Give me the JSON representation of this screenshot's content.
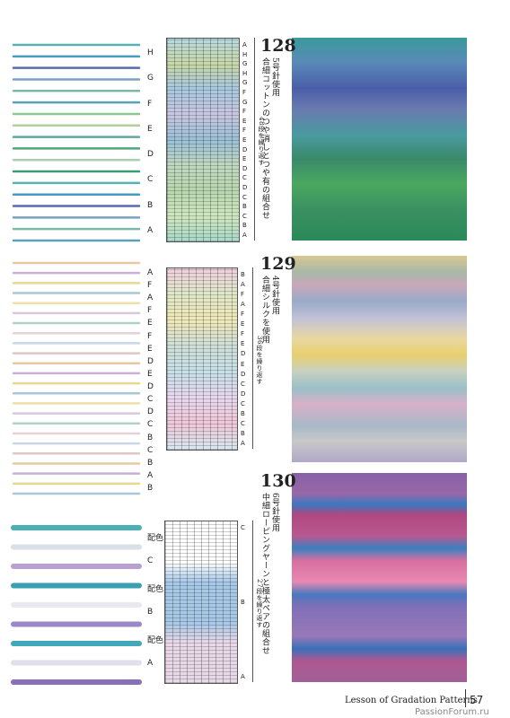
{
  "sections": [
    {
      "number": "128",
      "needle": "5号針使用",
      "yarn": "合細コットンのつや消しとつや有の組合せ",
      "repeat": "48段を繰り返す",
      "strand_labels": [
        "H",
        "G",
        "F",
        "E",
        "D",
        "C",
        "B",
        "A"
      ],
      "chart_labels": [
        "A",
        "H",
        "G",
        "H",
        "G",
        "F",
        "G",
        "F",
        "E",
        "F",
        "E",
        "D",
        "E",
        "D",
        "C",
        "D",
        "C",
        "B",
        "C",
        "B",
        "A"
      ]
    },
    {
      "number": "129",
      "needle": "4号針使用",
      "yarn": "合細シルクを使用",
      "repeat": "36段を繰り返す",
      "strand_labels": [
        "A",
        "F",
        "A",
        "F",
        "E",
        "F",
        "E",
        "D",
        "E",
        "D",
        "C",
        "D",
        "C",
        "B",
        "C",
        "B",
        "A",
        "B"
      ],
      "chart_labels": [
        "B",
        "A",
        "F",
        "A",
        "F",
        "E",
        "F",
        "E",
        "D",
        "E",
        "D",
        "C",
        "D",
        "C",
        "B",
        "C",
        "B",
        "A"
      ]
    },
    {
      "number": "130",
      "needle": "6号針使用",
      "yarn": "中細ローピングヤーンと極太ペアの組合せ",
      "repeat": "27段を繰り返す",
      "strand_labels": [
        "配色",
        "C",
        "配色",
        "B",
        "配色",
        "A"
      ],
      "chart_labels": [
        "C",
        "B",
        "A"
      ]
    }
  ],
  "footer": {
    "title": "Lesson of Gradation Patterns",
    "page": "57"
  },
  "watermark": "PassionForum.ru"
}
